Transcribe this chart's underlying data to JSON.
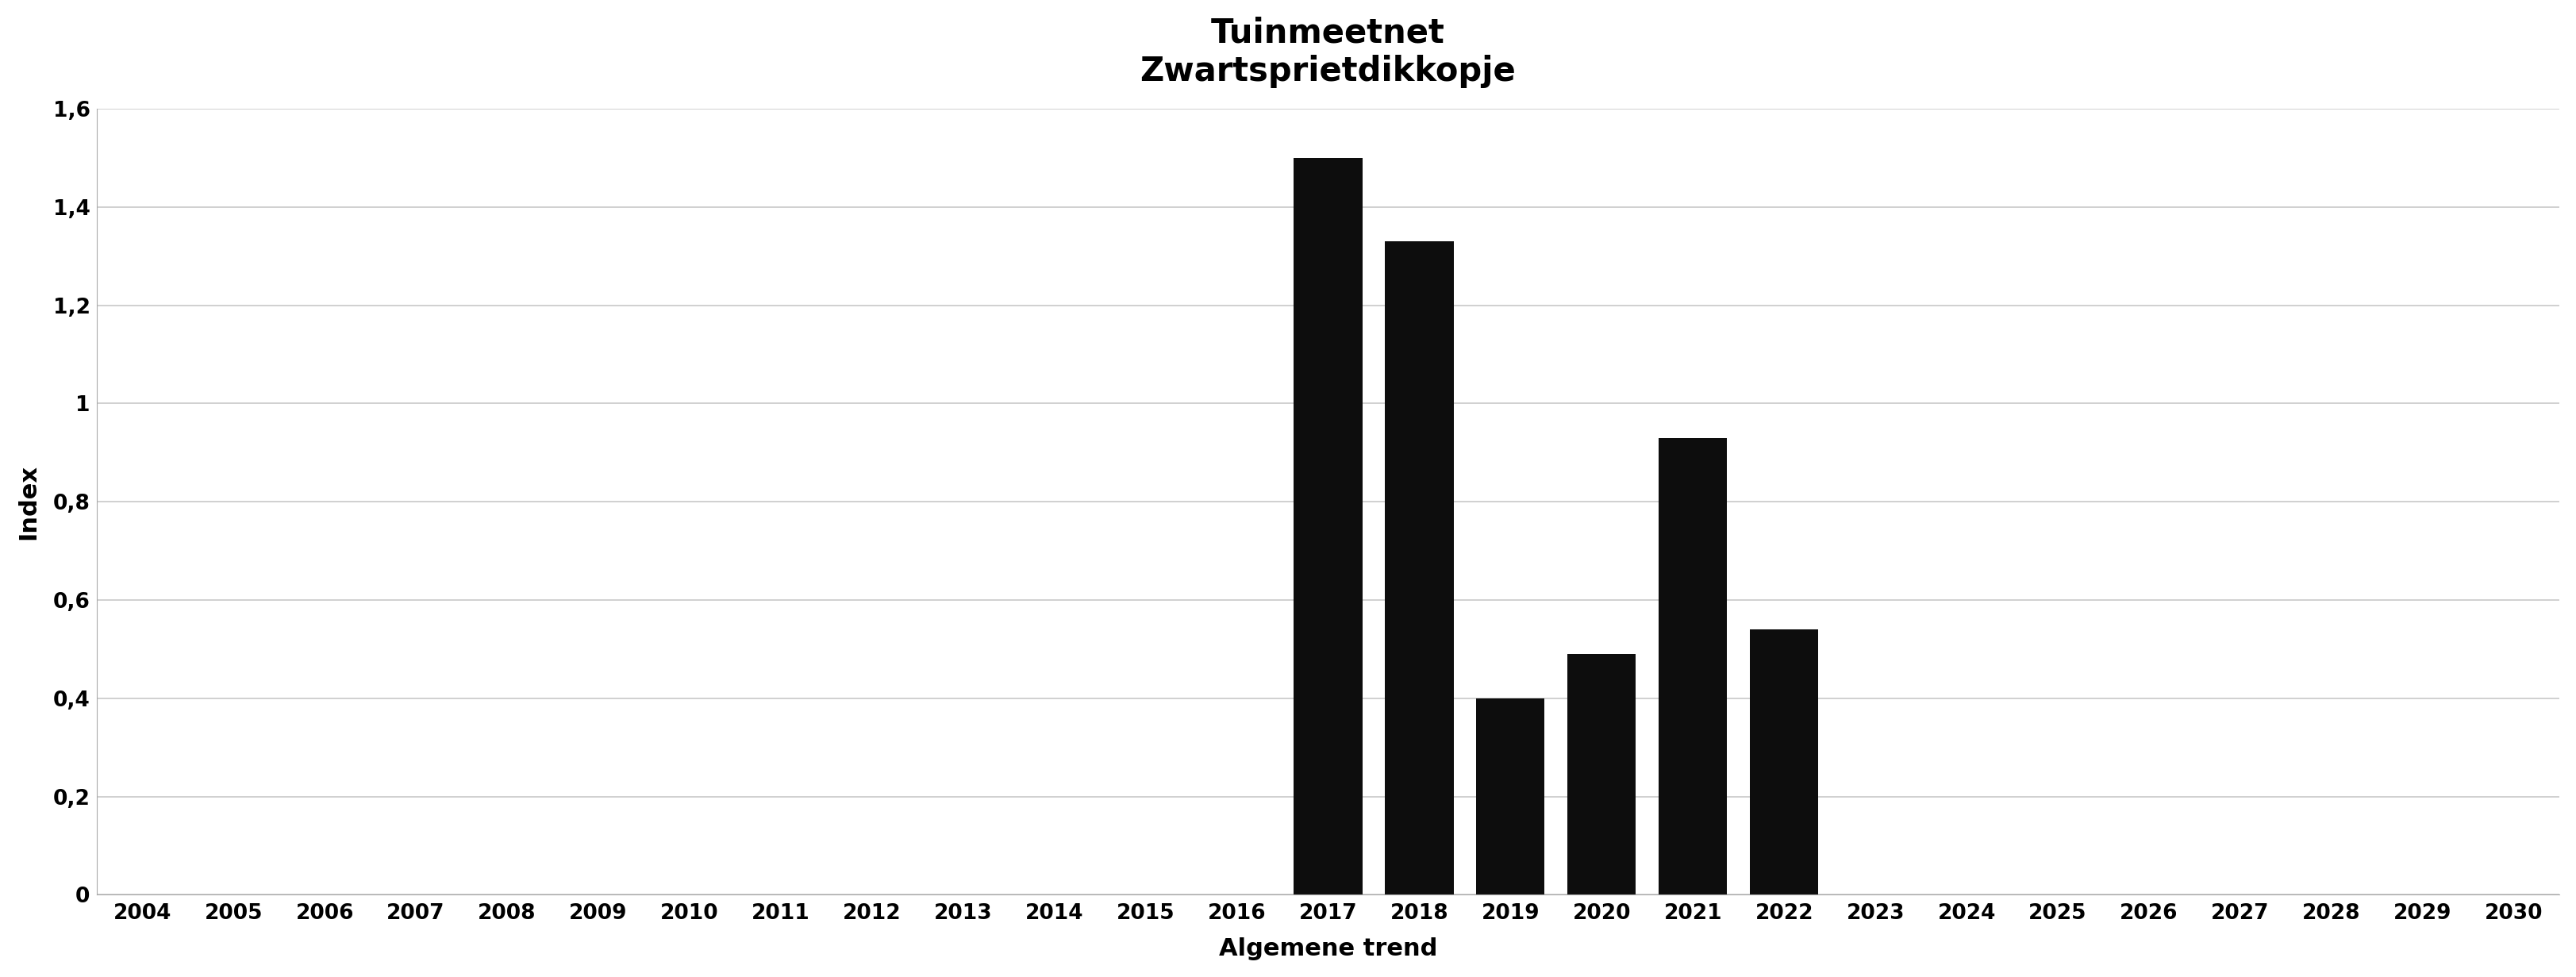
{
  "title_line1": "Tuinmeetnet",
  "title_line2": "Zwartsprietdikkopje",
  "xlabel": "Algemene trend",
  "ylabel": "Index",
  "years": [
    2004,
    2005,
    2006,
    2007,
    2008,
    2009,
    2010,
    2011,
    2012,
    2013,
    2014,
    2015,
    2016,
    2017,
    2018,
    2019,
    2020,
    2021,
    2022,
    2023,
    2024,
    2025,
    2026,
    2027,
    2028,
    2029,
    2030
  ],
  "values": [
    0,
    0,
    0,
    0,
    0,
    0,
    0,
    0,
    0,
    0,
    0,
    0,
    0,
    1.5,
    1.33,
    0.4,
    0.49,
    0.93,
    0.54,
    0,
    0,
    0,
    0,
    0,
    0,
    0,
    0
  ],
  "bar_color": "#0d0d0d",
  "background_color": "#ffffff",
  "ylim": [
    0,
    1.6
  ],
  "yticks": [
    0,
    0.2,
    0.4,
    0.6,
    0.8,
    1.0,
    1.2,
    1.4,
    1.6
  ],
  "ytick_labels": [
    "0",
    "0,2",
    "0,4",
    "0,6",
    "0,8",
    "1",
    "1,2",
    "1,4",
    "1,6"
  ],
  "grid_color": "#c8c8c8",
  "title_fontsize": 30,
  "axis_label_fontsize": 22,
  "tick_fontsize": 19,
  "bar_width": 0.75
}
